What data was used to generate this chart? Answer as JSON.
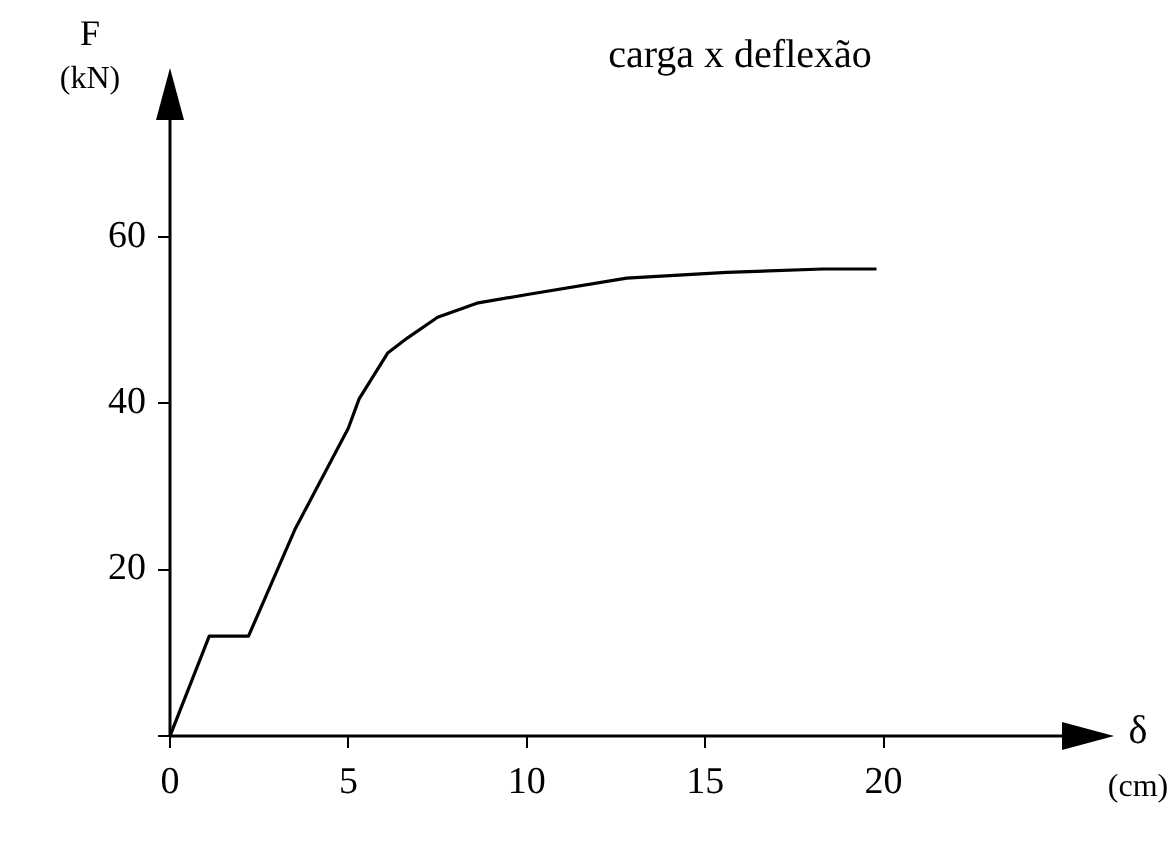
{
  "chart_data": {
    "type": "line",
    "title": "carga x deflexão",
    "xlabel": "δ (cm)",
    "ylabel": "F (kN)",
    "x": [
      0,
      1.1,
      2.2,
      3.5,
      5.0,
      5.3,
      6.1,
      6.65,
      7.5,
      8.6,
      10.1,
      12.8,
      15.6,
      18.3,
      19.8
    ],
    "series": [
      {
        "color": "#000000",
        "values": [
          0,
          12,
          12,
          24.8,
          37,
          40.5,
          46,
          47.8,
          50.3,
          52,
          53.1,
          55,
          55.7,
          56.1,
          56.1
        ]
      }
    ],
    "xlim": [
      0,
      25
    ],
    "ylim": [
      0,
      74
    ],
    "xticks": [
      0,
      5,
      10,
      15,
      20
    ],
    "yticks": [
      {
        "value": 0,
        "label": null
      },
      20,
      40,
      60
    ],
    "grid": false,
    "legend": false,
    "marker": "none",
    "line_style": "solid"
  }
}
